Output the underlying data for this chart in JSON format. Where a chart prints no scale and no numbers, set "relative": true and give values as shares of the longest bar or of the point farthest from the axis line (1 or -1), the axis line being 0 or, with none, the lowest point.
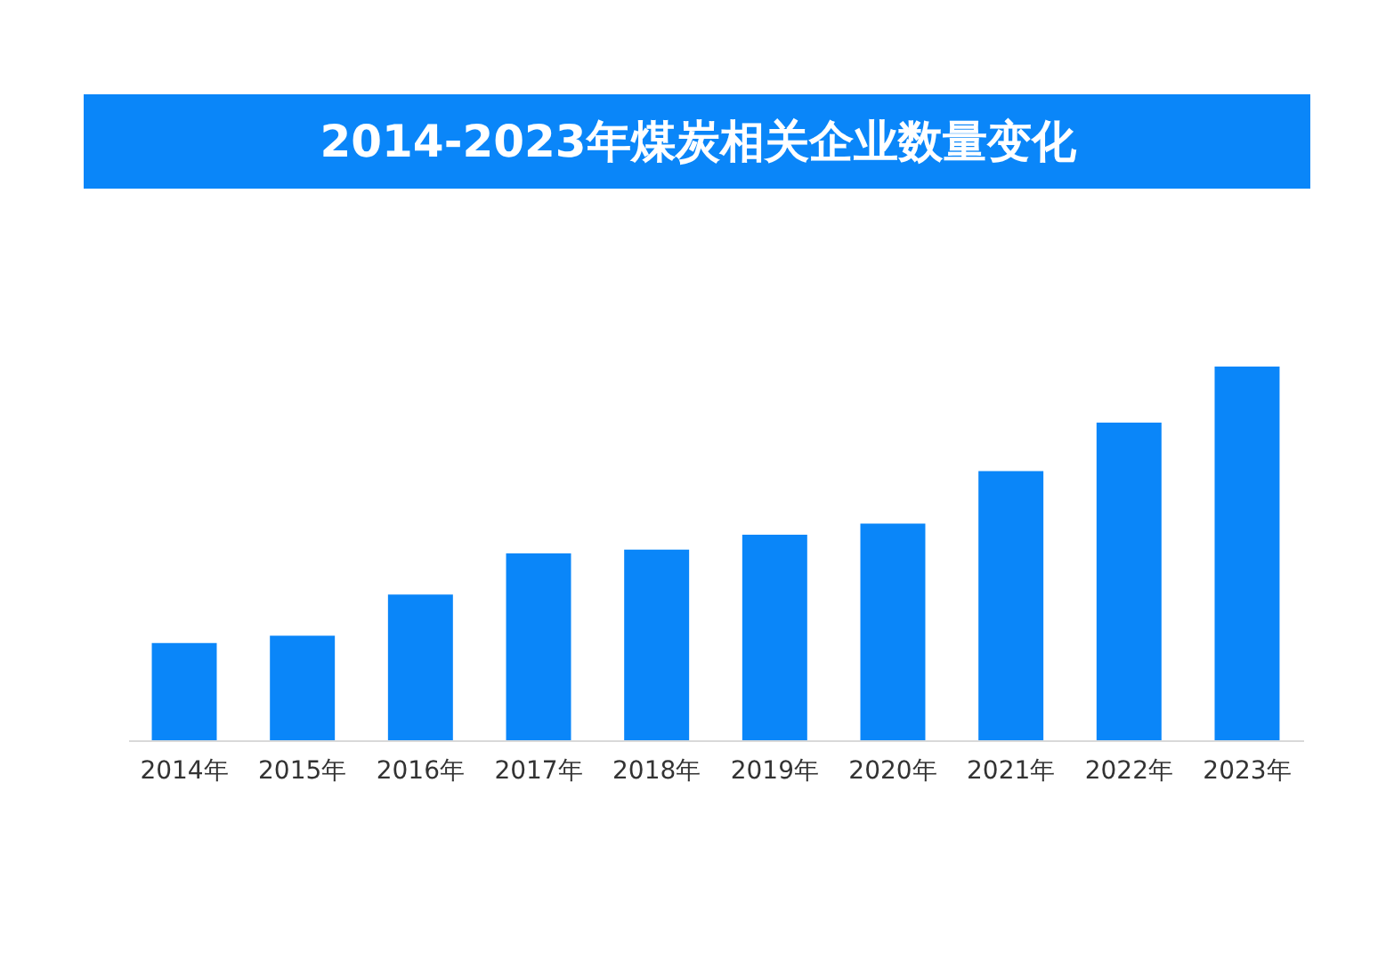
{
  "chart_data": {
    "type": "bar",
    "title": "2014-2023年煤炭相关企业数量变化",
    "categories": [
      "2014年",
      "2015年",
      "2016年",
      "2017年",
      "2018年",
      "2019年",
      "2020年",
      "2021年",
      "2022年",
      "2023年"
    ],
    "values": [
      0.26,
      0.28,
      0.39,
      0.5,
      0.51,
      0.55,
      0.58,
      0.72,
      0.85,
      1
    ],
    "color": "#0a86f9",
    "relative": true
  }
}
